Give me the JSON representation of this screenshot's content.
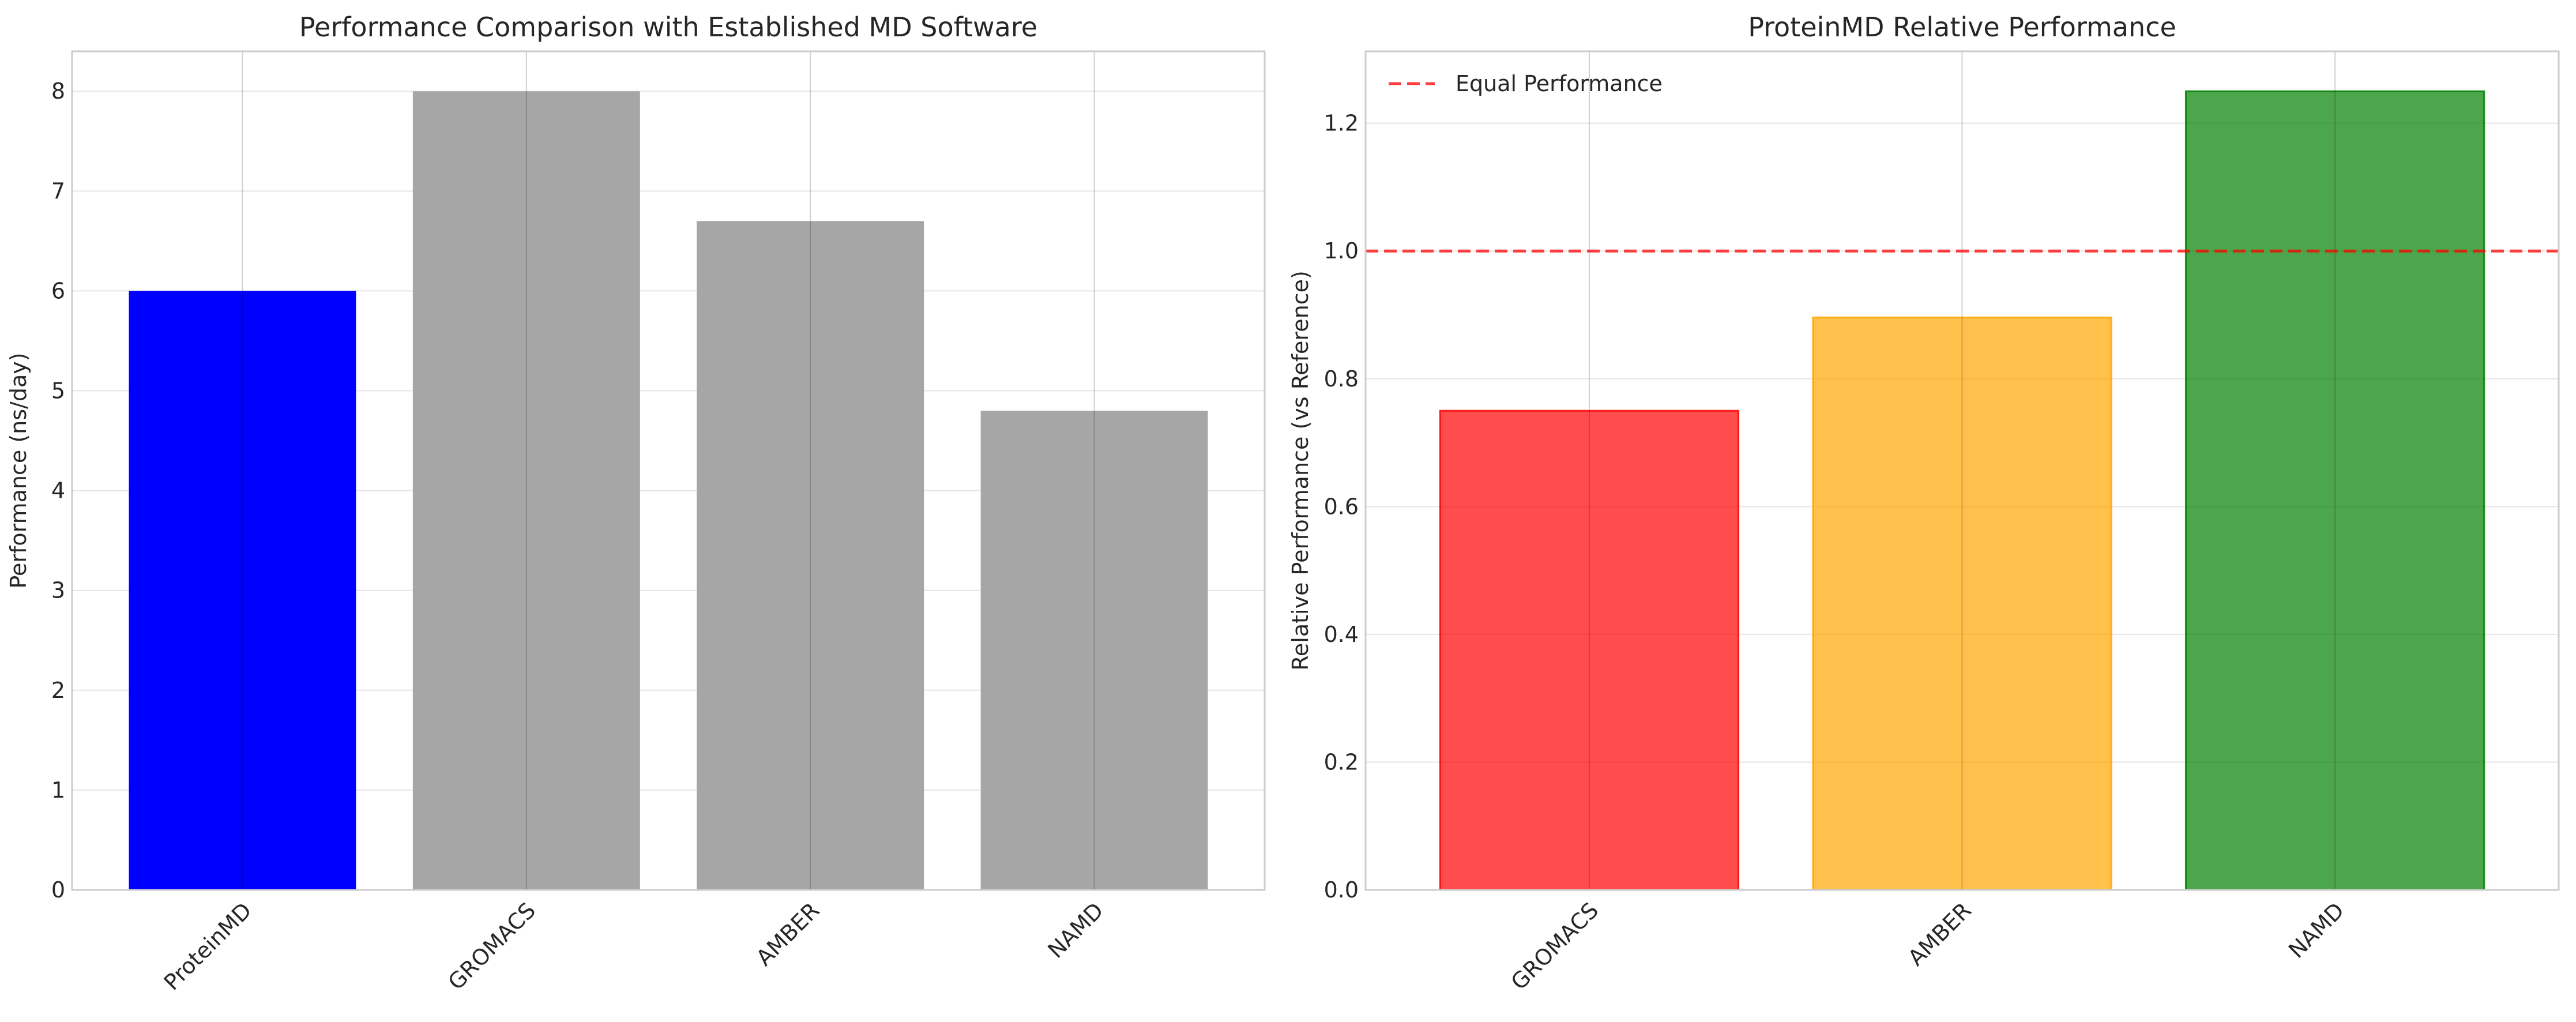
{
  "chart_data": [
    {
      "type": "bar",
      "title": "Performance Comparison with Established MD Software",
      "xlabel": "",
      "ylabel": "Performance (ns/day)",
      "categories": [
        "ProteinMD",
        "GROMACS",
        "AMBER",
        "NAMD"
      ],
      "values": [
        6.0,
        8.0,
        6.7,
        4.8
      ],
      "colors": [
        "#0000ff",
        "#a6a6a6",
        "#a6a6a6",
        "#a6a6a6"
      ],
      "ylim": [
        0,
        8.4
      ],
      "yticks": [
        0,
        1,
        2,
        3,
        4,
        5,
        6,
        7,
        8
      ],
      "ytick_labels": [
        "0",
        "1",
        "2",
        "3",
        "4",
        "5",
        "6",
        "7",
        "8"
      ],
      "grid": true
    },
    {
      "type": "bar",
      "title": "ProteinMD Relative Performance",
      "xlabel": "",
      "ylabel": "Relative Performance (vs Reference)",
      "categories": [
        "GROMACS",
        "AMBER",
        "NAMD"
      ],
      "values": [
        0.75,
        0.896,
        1.25
      ],
      "colors": [
        "#ff0000",
        "#ffa500",
        "#008000"
      ],
      "opacity": 0.7,
      "ylim": [
        0,
        1.3125
      ],
      "yticks": [
        0.0,
        0.2,
        0.4,
        0.6,
        0.8,
        1.0,
        1.2
      ],
      "ytick_labels": [
        "0.0",
        "0.2",
        "0.4",
        "0.6",
        "0.8",
        "1.0",
        "1.2"
      ],
      "reference_line": {
        "y": 1.0,
        "label": "Equal Performance",
        "color": "#ff0000",
        "style": "dashed"
      },
      "legend": {
        "position": "top-left",
        "entries": [
          "Equal Performance"
        ]
      },
      "grid": true
    }
  ]
}
